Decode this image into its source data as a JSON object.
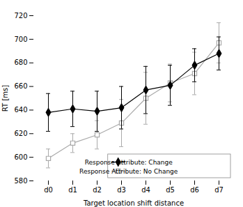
{
  "chart_data": {
    "type": "line",
    "xlabel": "Target location shift distance",
    "ylabel": "RT [ms]",
    "categories": [
      "d0",
      "d1",
      "d2",
      "d3",
      "d4",
      "d5",
      "d6",
      "d7"
    ],
    "series": [
      {
        "name": "Response Attribute: Change",
        "color": "#000000",
        "marker": "diamond",
        "values": [
          638,
          641,
          639,
          642,
          657,
          661,
          678,
          688
        ],
        "yerr": [
          16,
          15,
          17,
          18,
          20,
          17,
          14,
          14
        ]
      },
      {
        "name": "Response Attribute: No Change",
        "color": "#aaaaaa",
        "marker": "open square",
        "values": [
          599,
          612,
          619,
          629,
          650,
          663,
          671,
          697
        ],
        "yerr": [
          8,
          8,
          12,
          20,
          22,
          16,
          18,
          17
        ]
      }
    ],
    "ylim": [
      580,
      720
    ],
    "yticks": [
      580,
      600,
      620,
      640,
      660,
      680,
      700,
      720
    ],
    "grid": false,
    "legend": "lower right"
  }
}
